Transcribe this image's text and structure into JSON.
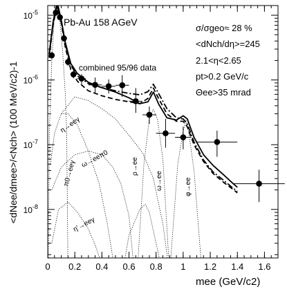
{
  "chart_data": {
    "type": "line",
    "x_range": [
      0,
      1.7
    ],
    "y_range_log10": [
      -8.75,
      -4.85
    ],
    "x_ticks": [
      0,
      0.2,
      0.4,
      0.6,
      0.8,
      1,
      1.2,
      1.4,
      1.6
    ],
    "x_tick_labels": [
      "0",
      "0.2",
      "0.4",
      "0.6",
      "0.8",
      "1",
      "1.2",
      "1.4",
      "1.6"
    ],
    "y_tick_exponents": [
      -8,
      -7,
      -6,
      -5
    ],
    "y_tick_base": "10",
    "annotations": {
      "system": "Pb-Au 158 AGeV",
      "dataset": "combined 95/96 data",
      "centrality": "σ/σgeo≈ 28 %",
      "multiplicity": "<dNch/dη>=245",
      "eta_range": "2.1<η<2.65",
      "pt_cut": "pt>0.2 GeV/c",
      "angle_cut": "Θee>35 mrad"
    },
    "axis_text": {
      "xlabel": "mee (GeV/c2)",
      "ylabel": "<dNee/dmee>/<Nch> (100 MeV/c2)-1"
    },
    "component_labels": {
      "pi0": "π0→eeγ",
      "eta": "η→eeγ",
      "omega_dalitz": "ω→eeπ0",
      "etaprime": "η'→eeγ",
      "rho": "ρ→ee",
      "omega": "ω→ee",
      "phi": "φ→ee"
    },
    "data_points": [
      {
        "x": 0.03,
        "y": 2.4e-06,
        "ex": 0.015,
        "ey_lo": 3e-07,
        "ey_hi": 3e-07
      },
      {
        "x": 0.06,
        "y": 1.1e-05,
        "ex": 0.015,
        "ey_lo": 1.2e-06,
        "ey_hi": 1.2e-06
      },
      {
        "x": 0.09,
        "y": 9.3e-06,
        "ex": 0.015,
        "ey_lo": 1e-06,
        "ey_hi": 1e-06
      },
      {
        "x": 0.12,
        "y": 4.4e-06,
        "ex": 0.015,
        "ey_lo": 5e-07,
        "ey_hi": 5e-07
      },
      {
        "x": 0.15,
        "y": 1.9e-06,
        "ex": 0.015,
        "ey_lo": 2.5e-07,
        "ey_hi": 2.5e-07
      },
      {
        "x": 0.19,
        "y": 1.22e-06,
        "ex": 0.02,
        "ey_lo": 1.6e-07,
        "ey_hi": 1.6e-07
      },
      {
        "x": 0.25,
        "y": 1.05e-06,
        "ex": 0.03,
        "ey_lo": 1.8e-07,
        "ey_hi": 1.8e-07
      },
      {
        "x": 0.35,
        "y": 8.4e-07,
        "ex": 0.05,
        "ey_lo": 2e-07,
        "ey_hi": 2.5e-07
      },
      {
        "x": 0.45,
        "y": 8e-07,
        "ex": 0.05,
        "ey_lo": 1.8e-07,
        "ey_hi": 2.2e-07
      },
      {
        "x": 0.55,
        "y": 8.3e-07,
        "ex": 0.05,
        "ey_lo": 2.8e-07,
        "ey_hi": 3.6e-07
      },
      {
        "x": 0.65,
        "y": 4.7e-07,
        "ex": 0.05,
        "ey_lo": 1.6e-07,
        "ey_hi": 2.8e-07
      },
      {
        "x": 0.75,
        "y": 2.9e-07,
        "ex": 0.05,
        "ey_lo": 8e-08,
        "ey_hi": 1e-07
      },
      {
        "x": 0.87,
        "y": 1.5e-07,
        "ex": 0.07,
        "ey_lo": 6e-08,
        "ey_hi": 1e-07
      },
      {
        "x": 1.0,
        "y": 1.3e-07,
        "ex": 0.06,
        "ey_lo": 4.5e-08,
        "ey_hi": 6e-08
      },
      {
        "x": 1.25,
        "y": 1.1e-07,
        "ex": 0.15,
        "ey_lo": 4.5e-08,
        "ey_hi": 5.5e-08
      },
      {
        "x": 1.56,
        "y": 2.5e-08,
        "ex": 0.19,
        "ey_lo": 1.2e-08,
        "ey_hi": 1.6e-08
      }
    ],
    "series": [
      {
        "style": "solid",
        "points": [
          [
            0.01,
            2.5e-06
          ],
          [
            0.04,
            8e-06
          ],
          [
            0.07,
            1.6e-05
          ],
          [
            0.1,
            8.5e-06
          ],
          [
            0.13,
            3.8e-06
          ],
          [
            0.17,
            1.8e-06
          ],
          [
            0.22,
            1.25e-06
          ],
          [
            0.3,
            9.2e-07
          ],
          [
            0.4,
            7.6e-07
          ],
          [
            0.5,
            6.5e-07
          ],
          [
            0.6,
            5.3e-07
          ],
          [
            0.68,
            4.3e-07
          ],
          [
            0.74,
            4.6e-07
          ],
          [
            0.78,
            6.5e-07
          ],
          [
            0.82,
            4.2e-07
          ],
          [
            0.88,
            2.6e-07
          ],
          [
            0.95,
            2.4e-07
          ],
          [
            1.0,
            2.8e-07
          ],
          [
            1.03,
            2.5e-07
          ],
          [
            1.08,
            1.3e-07
          ],
          [
            1.15,
            7e-08
          ],
          [
            1.22,
            4.8e-08
          ],
          [
            1.3,
            3.4e-08
          ],
          [
            1.36,
            2.6e-08
          ],
          [
            1.4,
            2.2e-08
          ]
        ]
      },
      {
        "style": "dashed",
        "points": [
          [
            0.01,
            2.2e-06
          ],
          [
            0.04,
            7.2e-06
          ],
          [
            0.07,
            1.42e-05
          ],
          [
            0.1,
            7.6e-06
          ],
          [
            0.13,
            3.2e-06
          ],
          [
            0.17,
            1.45e-06
          ],
          [
            0.22,
            9.5e-07
          ],
          [
            0.3,
            6.8e-07
          ],
          [
            0.4,
            5.7e-07
          ],
          [
            0.5,
            5e-07
          ],
          [
            0.6,
            4.6e-07
          ],
          [
            0.68,
            4.3e-07
          ],
          [
            0.74,
            5.2e-07
          ],
          [
            0.78,
            7.5e-07
          ],
          [
            0.82,
            5.1e-07
          ],
          [
            0.88,
            3e-07
          ],
          [
            0.95,
            2.3e-07
          ],
          [
            1.0,
            2.3e-07
          ],
          [
            1.03,
            1.9e-07
          ],
          [
            1.08,
            1e-07
          ],
          [
            1.15,
            5.5e-08
          ],
          [
            1.22,
            3.6e-08
          ],
          [
            1.3,
            2.6e-08
          ],
          [
            1.36,
            2.1e-08
          ],
          [
            1.4,
            1.8e-08
          ]
        ]
      },
      {
        "style": "dashdot",
        "points": [
          [
            0.01,
            2.3e-06
          ],
          [
            0.04,
            7.6e-06
          ],
          [
            0.07,
            1.5e-05
          ],
          [
            0.1,
            8e-06
          ],
          [
            0.13,
            3.5e-06
          ],
          [
            0.17,
            1.7e-06
          ],
          [
            0.22,
            1.15e-06
          ],
          [
            0.3,
            8.8e-07
          ],
          [
            0.4,
            7.6e-07
          ],
          [
            0.5,
            6.8e-07
          ],
          [
            0.6,
            6.2e-07
          ],
          [
            0.68,
            5.9e-07
          ],
          [
            0.74,
            6.6e-07
          ],
          [
            0.78,
            8.6e-07
          ],
          [
            0.82,
            6.1e-07
          ],
          [
            0.88,
            3.6e-07
          ],
          [
            0.95,
            2.6e-07
          ],
          [
            1.0,
            2.5e-07
          ],
          [
            1.03,
            2.1e-07
          ],
          [
            1.08,
            1.1e-07
          ],
          [
            1.15,
            5.8e-08
          ],
          [
            1.22,
            3.8e-08
          ],
          [
            1.3,
            2.8e-08
          ],
          [
            1.36,
            2.2e-08
          ],
          [
            1.4,
            1.9e-08
          ]
        ]
      },
      {
        "style": "dotted",
        "points": [
          [
            0.005,
            1e-09
          ],
          [
            0.012,
            1.5e-07
          ],
          [
            0.03,
            2e-06
          ],
          [
            0.05,
            1e-05
          ],
          [
            0.07,
            1.4e-05
          ],
          [
            0.09,
            8e-06
          ],
          [
            0.11,
            2.8e-06
          ],
          [
            0.13,
            6e-07
          ],
          [
            0.14,
            1.5e-07
          ],
          [
            0.15,
            1e-09
          ]
        ]
      },
      {
        "style": "dotted",
        "points": [
          [
            0.02,
            5e-08
          ],
          [
            0.05,
            1.5e-07
          ],
          [
            0.1,
            3e-07
          ],
          [
            0.15,
            3e-07
          ],
          [
            0.22,
            2e-07
          ],
          [
            0.3,
            8e-08
          ],
          [
            0.38,
            2.5e-08
          ],
          [
            0.44,
            6e-09
          ],
          [
            0.5,
            1e-09
          ]
        ]
      },
      {
        "style": "dotted",
        "points": [
          [
            0.03,
            2e-08
          ],
          [
            0.1,
            4.5e-08
          ],
          [
            0.2,
            7e-08
          ],
          [
            0.3,
            8e-08
          ],
          [
            0.4,
            7e-08
          ],
          [
            0.48,
            4.5e-08
          ],
          [
            0.54,
            2.5e-08
          ],
          [
            0.6,
            8e-09
          ],
          [
            0.64,
            1e-09
          ]
        ]
      },
      {
        "style": "dotted",
        "points": [
          [
            0.03,
            3e-09
          ],
          [
            0.08,
            1e-08
          ],
          [
            0.15,
            1.3e-08
          ],
          [
            0.22,
            9e-09
          ],
          [
            0.3,
            5e-09
          ],
          [
            0.36,
            2.5e-09
          ],
          [
            0.42,
            1e-09
          ]
        ]
      },
      {
        "style": "dotted",
        "points": [
          [
            0.1,
            3e-07
          ],
          [
            0.2,
            5.5e-07
          ],
          [
            0.3,
            4.8e-07
          ],
          [
            0.4,
            3.6e-07
          ],
          [
            0.5,
            2.5e-07
          ],
          [
            0.6,
            1.4e-07
          ],
          [
            0.7,
            7.5e-08
          ],
          [
            0.78,
            3e-08
          ],
          [
            0.85,
            6e-09
          ],
          [
            0.9,
            1e-09
          ]
        ]
      },
      {
        "style": "dotted",
        "points": [
          [
            0.55,
            1e-09
          ],
          [
            0.6,
            4e-09
          ],
          [
            0.68,
            1e-08
          ],
          [
            0.72,
            1.2e-08
          ],
          [
            0.75,
            9e-09
          ],
          [
            0.8,
            3e-09
          ],
          [
            0.85,
            1e-09
          ]
        ]
      },
      {
        "style": "dotted",
        "points": [
          [
            0.66,
            1e-09
          ],
          [
            0.71,
            5e-08
          ],
          [
            0.75,
            2.5e-07
          ],
          [
            0.78,
            3.5e-07
          ],
          [
            0.81,
            2.5e-07
          ],
          [
            0.85,
            6e-08
          ],
          [
            0.9,
            1e-09
          ]
        ]
      },
      {
        "style": "dotted",
        "points": [
          [
            0.9,
            1e-09
          ],
          [
            0.96,
            5e-08
          ],
          [
            1.0,
            1.6e-07
          ],
          [
            1.02,
            2.4e-07
          ],
          [
            1.04,
            1.6e-07
          ],
          [
            1.08,
            4e-08
          ],
          [
            1.14,
            1e-09
          ]
        ]
      }
    ]
  }
}
